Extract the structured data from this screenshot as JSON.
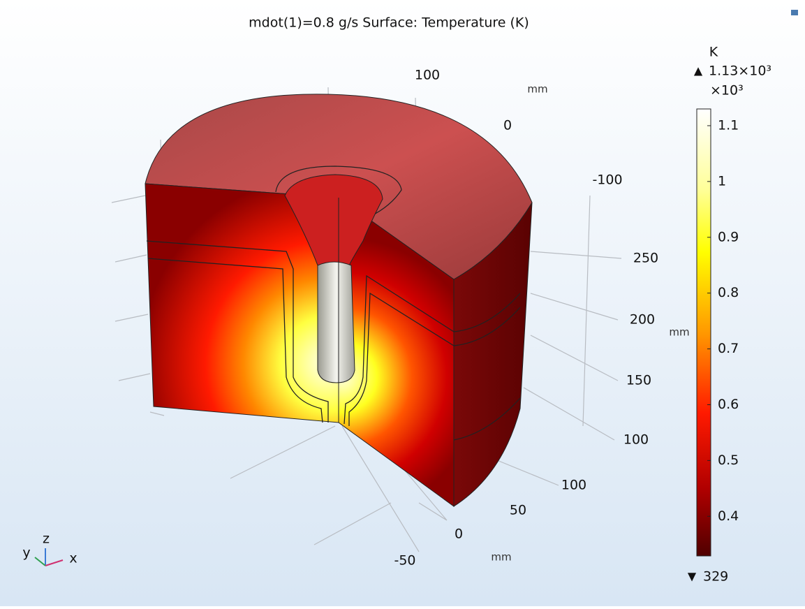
{
  "title": "mdot(1)=0.8 g/s   Surface: Temperature (K)",
  "axes": {
    "top": {
      "ticks": [
        "100",
        "0",
        "-100"
      ],
      "unit": "mm"
    },
    "vertical": {
      "ticks": [
        "250",
        "200",
        "150",
        "100"
      ],
      "unit": "mm"
    },
    "bottom": {
      "ticks": [
        "100",
        "50",
        "0",
        "-50"
      ],
      "unit": "mm"
    }
  },
  "triad": {
    "x": "x",
    "y": "y",
    "z": "z"
  },
  "colorbar": {
    "unit": "K",
    "max": {
      "value": 1130,
      "label": "1.13×10³"
    },
    "multiplier": "×10³",
    "min": 329,
    "ticks": [
      {
        "value": 1100,
        "label": "1.1"
      },
      {
        "value": 1000,
        "label": "1"
      },
      {
        "value": 900,
        "label": "0.9"
      },
      {
        "value": 800,
        "label": "0.8"
      },
      {
        "value": 700,
        "label": "0.7"
      },
      {
        "value": 600,
        "label": "0.6"
      },
      {
        "value": 500,
        "label": "0.5"
      },
      {
        "value": 400,
        "label": "0.4"
      }
    ]
  }
}
